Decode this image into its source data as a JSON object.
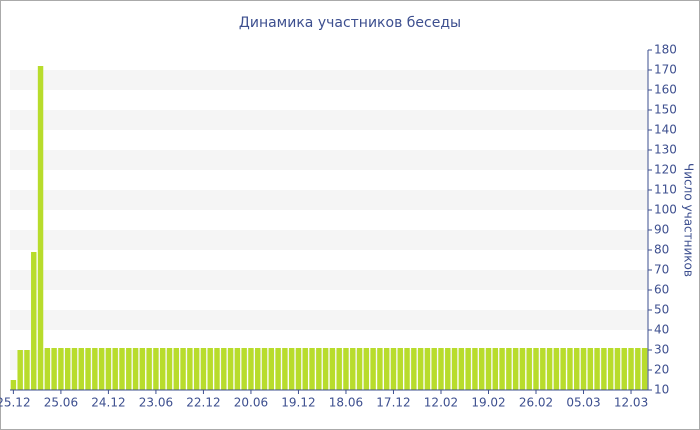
{
  "chart_data": {
    "type": "bar",
    "title": "Динамика участников беседы",
    "y_label": "Число участников",
    "categories": [
      "25.12",
      null,
      null,
      null,
      null,
      null,
      null,
      "25.06",
      null,
      null,
      null,
      null,
      null,
      null,
      "24.12",
      null,
      null,
      null,
      null,
      null,
      null,
      "23.06",
      null,
      null,
      null,
      null,
      null,
      null,
      "22.12",
      null,
      null,
      null,
      null,
      null,
      null,
      "20.06",
      null,
      null,
      null,
      null,
      null,
      null,
      "19.12",
      null,
      null,
      null,
      null,
      null,
      null,
      "18.06",
      null,
      null,
      null,
      null,
      null,
      null,
      "17.12",
      null,
      null,
      null,
      null,
      null,
      null,
      "12.02",
      null,
      null,
      null,
      null,
      null,
      null,
      "19.02",
      null,
      null,
      null,
      null,
      null,
      null,
      "26.02",
      null,
      null,
      null,
      null,
      null,
      null,
      "05.03",
      null,
      null,
      null,
      null,
      null,
      null,
      "12.03",
      null,
      null
    ],
    "values": [
      15,
      30,
      30,
      79,
      172,
      31,
      31,
      31,
      31,
      31,
      31,
      31,
      31,
      31,
      31,
      31,
      31,
      31,
      31,
      31,
      31,
      31,
      31,
      31,
      31,
      31,
      31,
      31,
      31,
      31,
      31,
      31,
      31,
      31,
      31,
      31,
      31,
      31,
      31,
      31,
      31,
      31,
      31,
      31,
      31,
      31,
      31,
      31,
      31,
      31,
      31,
      31,
      31,
      31,
      31,
      31,
      31,
      31,
      31,
      31,
      31,
      31,
      31,
      31,
      31,
      31,
      31,
      31,
      31,
      31,
      31,
      31,
      31,
      31,
      31,
      31,
      31,
      31,
      31,
      31,
      31,
      31,
      31,
      31,
      31,
      31,
      31,
      31,
      31,
      31,
      31,
      31,
      31,
      31
    ],
    "color": "#b8dc2c",
    "ylim": [
      10,
      180
    ],
    "yticks": [
      10,
      20,
      30,
      40,
      50,
      60,
      70,
      80,
      90,
      100,
      110,
      120,
      130,
      140,
      150,
      160,
      170,
      180
    ],
    "y_axis_side": "right",
    "grid": "bands"
  }
}
